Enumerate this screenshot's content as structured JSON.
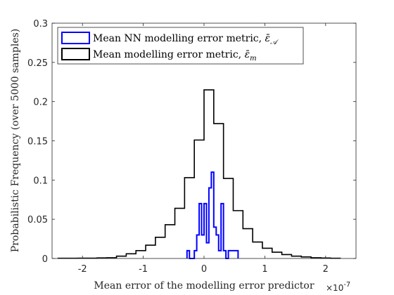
{
  "chart_data": {
    "type": "histogram",
    "xlabel": "Mean error of the modelling error predictor",
    "ylabel": "Probabilistic Frequency (over 5000 samples)",
    "x_exponent_base": "×10",
    "x_exponent_power": "-7",
    "xlim": [
      -2.5,
      2.5
    ],
    "ylim": [
      0,
      0.3
    ],
    "grid": false,
    "legend_position": "top-right",
    "xticks": [
      -2,
      -1,
      0,
      1,
      2
    ],
    "xtick_labels": [
      "-2",
      "-1",
      "0",
      "1",
      "2"
    ],
    "yticks": [
      0,
      0.05,
      0.1,
      0.15,
      0.2,
      0.25,
      0.3
    ],
    "ytick_labels": [
      "0",
      "0.05",
      "0.1",
      "0.15",
      "0.2",
      "0.25",
      "0.3"
    ],
    "series": [
      {
        "name": "Mean modelling error metric, ē_m",
        "legend_main": "Mean modelling error metric, ",
        "legend_symbol": "ε̄",
        "legend_sub": "m",
        "color": "#000000",
        "bin_edges": [
          -2.4,
          -2.24,
          -2.08,
          -1.92,
          -1.76,
          -1.6,
          -1.44,
          -1.28,
          -1.12,
          -0.96,
          -0.8,
          -0.64,
          -0.48,
          -0.32,
          -0.16,
          0.0,
          0.16,
          0.32,
          0.48,
          0.64,
          0.8,
          0.96,
          1.12,
          1.28,
          1.44,
          1.6,
          1.76,
          1.92,
          2.08,
          2.24
        ],
        "values": [
          0.0003,
          0.0003,
          0.0004,
          0.0004,
          0.0007,
          0.001,
          0.003,
          0.006,
          0.01,
          0.017,
          0.027,
          0.043,
          0.064,
          0.103,
          0.151,
          0.215,
          0.172,
          0.102,
          0.061,
          0.038,
          0.021,
          0.013,
          0.008,
          0.005,
          0.003,
          0.002,
          0.001,
          0.0006,
          0.0003
        ]
      },
      {
        "name": "Mean NN modelling error metric, ē_A",
        "legend_main": "Mean NN modelling error metric, ",
        "legend_symbol": "ε̄",
        "legend_sub": "𝒜",
        "color": "#0000ff",
        "bin_edges": [
          -0.28,
          -0.24,
          -0.2,
          -0.16,
          -0.12,
          -0.08,
          -0.04,
          0.0,
          0.04,
          0.08,
          0.12,
          0.16,
          0.2,
          0.24,
          0.28,
          0.32,
          0.36,
          0.4,
          0.44,
          0.48,
          0.52,
          0.56
        ],
        "values": [
          0.01,
          0.0,
          0.0,
          0.01,
          0.03,
          0.07,
          0.03,
          0.07,
          0.02,
          0.09,
          0.11,
          0.04,
          0.03,
          0.01,
          0.07,
          0.01,
          0.0,
          0.01,
          0.01,
          0.01,
          0.01
        ]
      }
    ]
  }
}
